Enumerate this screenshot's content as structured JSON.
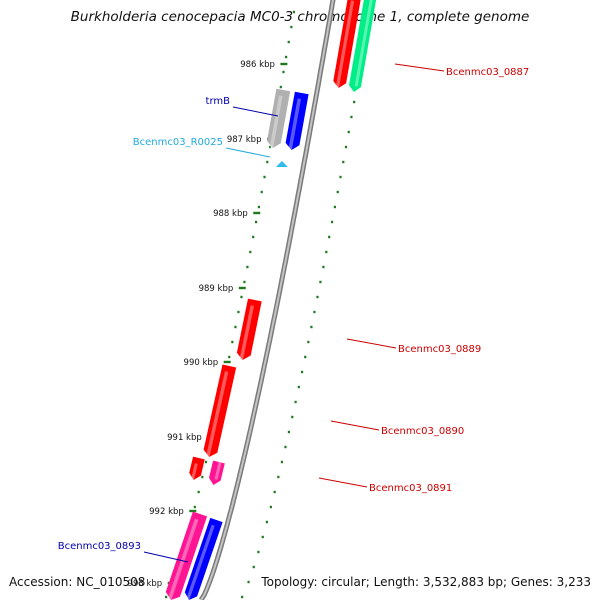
{
  "title": "Burkholderia cenocepacia MC0-3 chromosome 1, complete genome",
  "footer": {
    "accession": "Accession: NC_010508",
    "topology": "Topology: circular; Length: 3,532,883 bp; Genes: 3,233"
  },
  "axis": {
    "unit": "kbp",
    "labels": [
      "986 kbp",
      "987 kbp",
      "988 kbp",
      "989 kbp",
      "990 kbp",
      "991 kbp",
      "992 kbp",
      "993 kbp"
    ]
  },
  "colors": {
    "backbone": "#8a8a8a",
    "tick": "#1f7a1f",
    "gene_red": "#ff0000",
    "gene_blue": "#0000ff",
    "gene_pink": "#ff1493",
    "gene_grey": "#b0b0b0",
    "gene_green": "#00ee88",
    "rna_cyan": "#33bbee",
    "label_red": "#cc0000",
    "label_blue": "#0000aa",
    "label_cyan": "#22aadd"
  },
  "genes": [
    {
      "name": "Bcenmc03_0887",
      "color": "#00ee88",
      "labeled": true,
      "label_color": "#cc0000"
    },
    {
      "name": "",
      "color": "#ff0000",
      "labeled": false
    },
    {
      "name": "trmB",
      "color": "#b0b0b0",
      "labeled": true,
      "label_color": "#0000aa"
    },
    {
      "name": "",
      "color": "#0000ff",
      "labeled": false
    },
    {
      "name": "Bcenmc03_R0025",
      "color": "#33bbee",
      "labeled": true,
      "label_color": "#22aadd"
    },
    {
      "name": "Bcenmc03_0889",
      "color": "#ff0000",
      "labeled": true,
      "label_color": "#cc0000"
    },
    {
      "name": "Bcenmc03_0890",
      "color": "#ff0000",
      "labeled": true,
      "label_color": "#cc0000"
    },
    {
      "name": "",
      "color": "#ff0000",
      "labeled": false
    },
    {
      "name": "Bcenmc03_0891",
      "color": "#ff1493",
      "labeled": true,
      "label_color": "#cc0000"
    },
    {
      "name": "Bcenmc03_0893",
      "color": "#ff1493",
      "labeled": true,
      "label_color": "#0000aa"
    },
    {
      "name": "",
      "color": "#0000ff",
      "labeled": false
    }
  ]
}
